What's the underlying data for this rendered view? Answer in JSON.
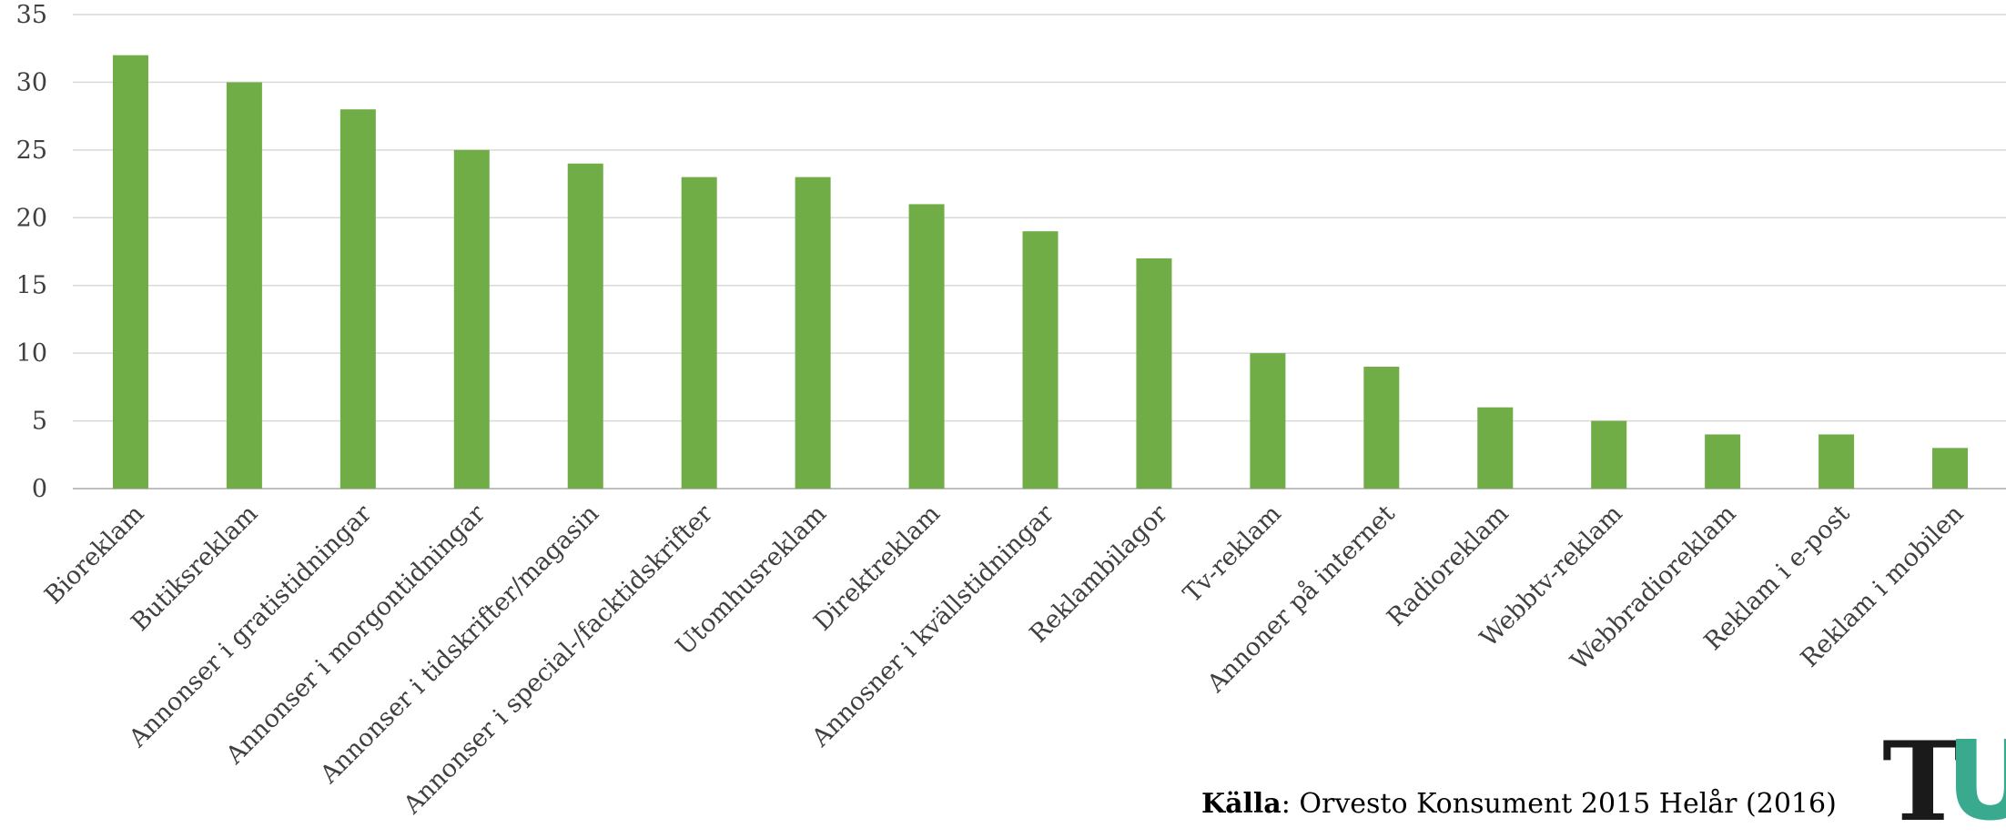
{
  "chart_data": {
    "type": "bar",
    "title": "",
    "xlabel": "",
    "ylabel": "",
    "ylim": [
      0,
      35
    ],
    "yticks": [
      0,
      5,
      10,
      15,
      20,
      25,
      30,
      35
    ],
    "grid": true,
    "legend": "none",
    "bar_color": "#70ad47",
    "categories": [
      "Bioreklam",
      "Butiksreklam",
      "Annonser i gratistidningar",
      "Annonser i morgontidningar",
      "Annonser i tidskrifter/magasin",
      "Annonser i special-/facktidskrifter",
      "Utomhusreklam",
      "Direktreklam",
      "Annosner i kvällstidningar",
      "Reklambilagor",
      "Tv-reklam",
      "Annoner på internet",
      "Radioreklam",
      "Webbtv-reklam",
      "Webbradioreklam",
      "Reklam i e-post",
      "Reklam i mobilen"
    ],
    "values": [
      32,
      30,
      28,
      25,
      24,
      23,
      23,
      21,
      19,
      17,
      10,
      9,
      6,
      5,
      4,
      4,
      3
    ]
  },
  "source": {
    "label": "Källa",
    "text": ": Orvesto Konsument 2015 Helår (2016)"
  },
  "logo": {
    "letter_t": "T",
    "letter_u": "U",
    "accent_color": "#3aaa8f"
  }
}
